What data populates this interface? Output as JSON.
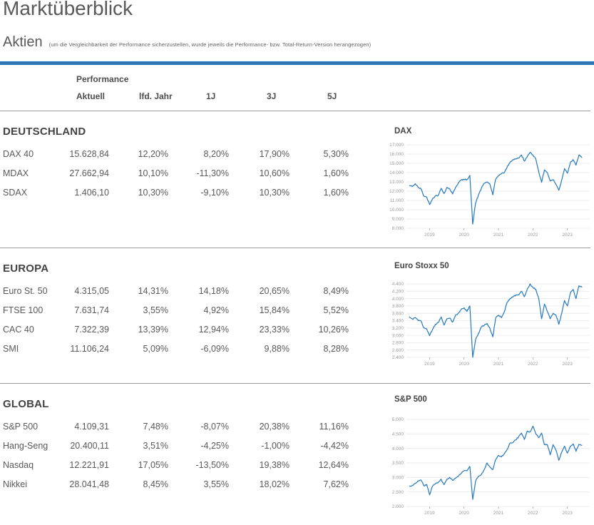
{
  "page": {
    "title": "Marktüberblick",
    "section_label": "Aktien",
    "note": "(um die Vergleichbarkeit der Performance sicherzustellen, wurde jeweils die Performance- bzw. Total-Return-Version herangezogen)",
    "accent_color": "#2e75b6"
  },
  "table_header": {
    "group": "Performance",
    "columns": [
      "Aktuell",
      "lfd. Jahr",
      "1J",
      "3J",
      "5J"
    ]
  },
  "sections": [
    {
      "name": "DEUTSCHLAND",
      "rows": [
        {
          "label": "DAX 40",
          "values": [
            "15.628,84",
            "12,20%",
            "8,20%",
            "17,90%",
            "5,30%"
          ]
        },
        {
          "label": "MDAX",
          "values": [
            "27.662,94",
            "10,10%",
            "-11,30%",
            "10,60%",
            "1,60%"
          ]
        },
        {
          "label": "SDAX",
          "values": [
            "1.406,10",
            "10,30%",
            "-9,10%",
            "10,30%",
            "1,60%"
          ]
        }
      ]
    },
    {
      "name": "EUROPA",
      "rows": [
        {
          "label": "Euro St. 50",
          "values": [
            "4.315,05",
            "14,31%",
            "14,18%",
            "20,65%",
            "8,49%"
          ]
        },
        {
          "label": "FTSE 100",
          "values": [
            "7.631,74",
            "3,55%",
            "4,92%",
            "15,84%",
            "5,52%"
          ]
        },
        {
          "label": "CAC 40",
          "values": [
            "7.322,39",
            "13,39%",
            "12,94%",
            "23,33%",
            "10,26%"
          ]
        },
        {
          "label": "SMI",
          "values": [
            "11.106,24",
            "5,09%",
            "-6,09%",
            "9,88%",
            "8,28%"
          ]
        }
      ]
    },
    {
      "name": "GLOBAL",
      "rows": [
        {
          "label": "S&P 500",
          "values": [
            "4.109,31",
            "7,48%",
            "-8,07%",
            "20,38%",
            "11,16%"
          ]
        },
        {
          "label": "Hang-Seng",
          "values": [
            "20.400,11",
            "3,51%",
            "-4,25%",
            "-1,00%",
            "-4,42%"
          ]
        },
        {
          "label": "Nasdaq",
          "values": [
            "12.221,91",
            "17,05%",
            "-13,50%",
            "19,38%",
            "12,64%"
          ]
        },
        {
          "label": "Nikkei",
          "values": [
            "28.041,48",
            "8,45%",
            "3,55%",
            "18,02%",
            "7,62%"
          ]
        }
      ]
    }
  ],
  "chart_data": [
    {
      "type": "line",
      "title": "DAX",
      "line_color": "#2578be",
      "xlabel": "",
      "ylabel": "",
      "xlim": [
        2018.33,
        2023.65
      ],
      "xticks": [
        2019,
        2020,
        2021,
        2022,
        2023
      ],
      "ylim": [
        8000,
        17000
      ],
      "ytick_step": 1000,
      "grid": true,
      "x_start": 2018.42,
      "x_step": 0.08333,
      "noise_amplitude": 120,
      "values": [
        12600,
        12500,
        12800,
        12400,
        12250,
        11450,
        11350,
        10550,
        11200,
        11500,
        11550,
        12300,
        11750,
        12400,
        12250,
        11700,
        12400,
        12900,
        13200,
        13250,
        13250,
        13700,
        8450,
        10700,
        11600,
        12300,
        12850,
        13000,
        12750,
        11600,
        13300,
        13700,
        13900,
        14000,
        14600,
        15100,
        15400,
        15500,
        15550,
        15900,
        15250,
        15700,
        16200,
        15900,
        15450,
        14100,
        12950,
        14300,
        14000,
        13100,
        13250,
        12750,
        12100,
        13200,
        14450,
        13950,
        15100,
        15400,
        14800,
        15900,
        15630
      ]
    },
    {
      "type": "line",
      "title": "Euro Stoxx 50",
      "line_color": "#2578be",
      "xlabel": "",
      "ylabel": "",
      "xlim": [
        2018.33,
        2023.65
      ],
      "xticks": [
        2019,
        2020,
        2021,
        2022,
        2023
      ],
      "ylim": [
        2400,
        4400
      ],
      "ytick_step": 200,
      "grid": true,
      "x_start": 2018.42,
      "x_step": 0.08333,
      "noise_amplitude": 30,
      "values": [
        3500,
        3440,
        3480,
        3400,
        3390,
        3200,
        3170,
        2990,
        3160,
        3300,
        3350,
        3500,
        3280,
        3450,
        3470,
        3360,
        3550,
        3600,
        3700,
        3750,
        3650,
        3800,
        2400,
        2880,
        3050,
        3230,
        3270,
        3320,
        3190,
        2960,
        3470,
        3550,
        3480,
        3640,
        3900,
        4000,
        4040,
        4100,
        4100,
        4200,
        4050,
        4250,
        4400,
        4300,
        4250,
        4000,
        3450,
        3850,
        3650,
        3450,
        3600,
        3550,
        3300,
        3600,
        3950,
        3800,
        4150,
        4250,
        4000,
        4350,
        4315
      ]
    },
    {
      "type": "line",
      "title": "S&P 500",
      "line_color": "#2578be",
      "xlabel": "",
      "ylabel": "",
      "xlim": [
        2018.33,
        2023.65
      ],
      "xticks": [
        2019,
        2020,
        2021,
        2022,
        2023
      ],
      "ylim": [
        2000,
        5000
      ],
      "ytick_step": 500,
      "grid": true,
      "x_start": 2018.42,
      "x_step": 0.08333,
      "noise_amplitude": 32,
      "values": [
        2700,
        2720,
        2800,
        2880,
        2910,
        2710,
        2760,
        2400,
        2700,
        2780,
        2830,
        2940,
        2750,
        2940,
        3000,
        2900,
        2980,
        3040,
        3140,
        3230,
        3230,
        3380,
        2240,
        2870,
        3040,
        3100,
        3270,
        3500,
        3360,
        3270,
        3620,
        3760,
        3710,
        3810,
        3970,
        4180,
        4200,
        4300,
        4400,
        4530,
        4310,
        4600,
        4570,
        4770,
        4500,
        4370,
        4530,
        4130,
        4130,
        3780,
        4130,
        3950,
        3590,
        3870,
        4080,
        3840,
        4070,
        4160,
        3900,
        4140,
        4110
      ]
    }
  ]
}
